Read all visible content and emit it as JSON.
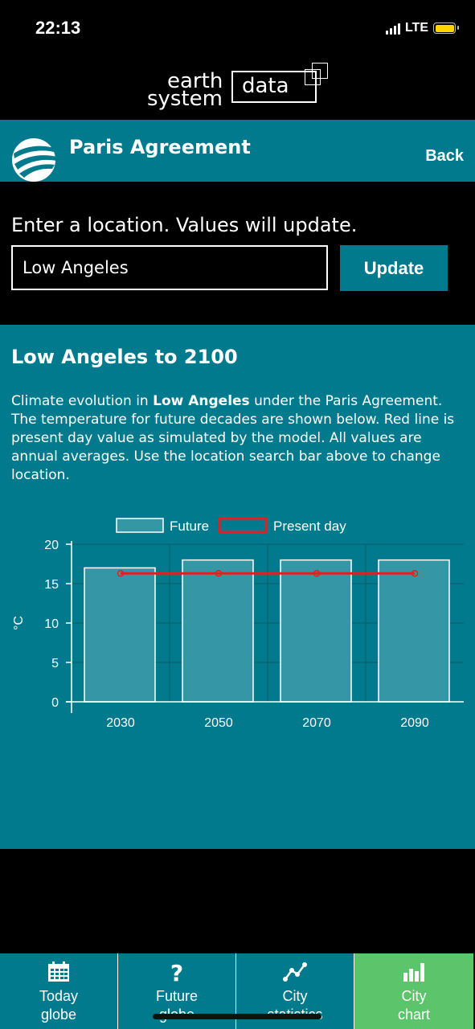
{
  "status": {
    "time": "22:13",
    "network": "LTE"
  },
  "logo": {
    "word1": "earth",
    "word2": "system",
    "word3": "data"
  },
  "header": {
    "title": "Paris Agreement",
    "back_label": "Back"
  },
  "search": {
    "prompt": "Enter a location. Values will update.",
    "value": "Low Angeles",
    "button_label": "Update"
  },
  "content": {
    "title": "Low Angeles to 2100",
    "desc_pre": "Climate evolution in ",
    "desc_city": "Low Angeles",
    "desc_post": " under the Paris Agreement. The temperature for future decades are shown below. Red line is present day value as simulated by the model. All values are annual averages. Use the location search bar above to change location."
  },
  "chart_data": {
    "type": "bar",
    "categories": [
      "2030",
      "2050",
      "2070",
      "2090"
    ],
    "series": [
      {
        "name": "Future",
        "values": [
          17,
          18,
          18,
          18
        ]
      },
      {
        "name": "Present day",
        "values": [
          16.3,
          16.3,
          16.3,
          16.3
        ]
      }
    ],
    "ylabel": "°C",
    "ylim": [
      0,
      20
    ],
    "yticks": [
      "0",
      "5",
      "10",
      "15",
      "20"
    ],
    "grid": true,
    "legend": "top-center",
    "colors": {
      "future_fill": "#3597a6",
      "present_line": "#e02020"
    }
  },
  "nav": {
    "items": [
      {
        "line1": "Today",
        "line2": "globe",
        "icon": "calendar-icon"
      },
      {
        "line1": "Future",
        "line2": "globe",
        "icon": "question-icon"
      },
      {
        "line1": "City",
        "line2": "statistics",
        "icon": "line-chart-icon"
      },
      {
        "line1": "City",
        "line2": "chart",
        "icon": "bar-chart-icon"
      }
    ]
  }
}
